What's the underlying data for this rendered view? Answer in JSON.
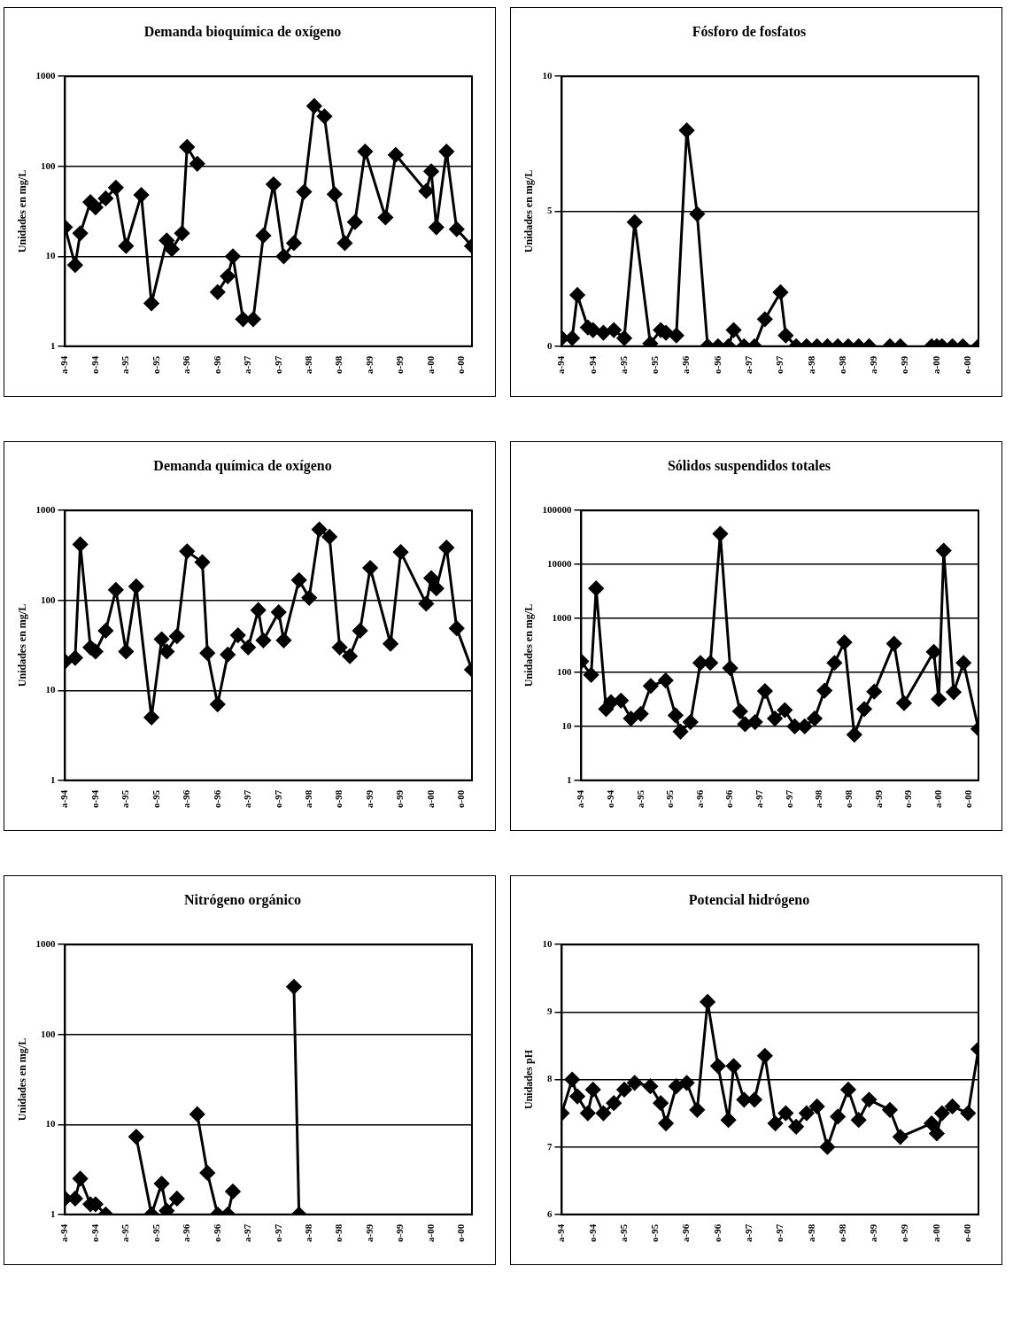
{
  "chart_data": [
    {
      "type": "line",
      "title": "Demanda bioquímica de oxígeno",
      "ylabel": "Unidades en mg/L",
      "log": true,
      "grid": "y",
      "marker": "diamond",
      "line_style": "solid",
      "color": "#000000",
      "x": [
        "1994-04",
        "1994-06",
        "1994-07",
        "1994-09",
        "1994-10",
        "1994-12",
        "1995-02",
        "1995-04",
        "1995-07",
        "1995-09",
        "1995-12",
        "1996-01",
        "1996-03",
        "1996-04",
        "1996-06",
        "1996-08",
        "1996-10",
        "1996-12",
        "1997-01",
        "1997-03",
        "1997-05",
        "1997-07",
        "1997-09",
        "1997-11",
        "1998-01",
        "1998-03",
        "1998-05",
        "1998-07",
        "1998-09",
        "1998-11",
        "1999-01",
        "1999-03",
        "1999-07",
        "1999-09",
        "2000-03",
        "2000-04",
        "2000-05",
        "2000-07",
        "2000-09",
        "2000-12"
      ],
      "values": [
        21,
        8,
        18,
        40,
        35,
        44,
        58,
        13,
        48,
        3,
        15,
        12,
        18,
        164,
        107,
        null,
        4,
        6,
        10,
        2,
        2,
        17,
        63,
        10,
        14,
        52,
        468,
        360,
        49,
        14,
        24,
        146,
        27,
        134,
        53,
        88,
        21,
        146,
        20,
        13
      ],
      "xlim": [
        "1994-04",
        "2000-12"
      ],
      "xticks": [
        {
          "value": "1994-04",
          "label": "a-94"
        },
        {
          "value": "1994-10",
          "label": "o-94"
        },
        {
          "value": "1995-04",
          "label": "a-95"
        },
        {
          "value": "1995-10",
          "label": "o-95"
        },
        {
          "value": "1996-04",
          "label": "a-96"
        },
        {
          "value": "1996-10",
          "label": "o-96"
        },
        {
          "value": "1997-04",
          "label": "a-97"
        },
        {
          "value": "1997-10",
          "label": "o-97"
        },
        {
          "value": "1998-04",
          "label": "a-98"
        },
        {
          "value": "1998-10",
          "label": "o-98"
        },
        {
          "value": "1999-04",
          "label": "a-99"
        },
        {
          "value": "1999-10",
          "label": "o-99"
        },
        {
          "value": "2000-04",
          "label": "a-00"
        },
        {
          "value": "2000-10",
          "label": "o-00"
        }
      ],
      "ylim": [
        1,
        1000
      ],
      "yticks": [
        1,
        10,
        100,
        1000
      ]
    },
    {
      "type": "line",
      "title": "Fósforo de fosfatos",
      "ylabel": "Unidades en mg/L",
      "grid": "y",
      "marker": "diamond",
      "line_style": "solid",
      "color": "#000000",
      "x": [
        "1994-04",
        "1994-06",
        "1994-07",
        "1994-09",
        "1994-10",
        "1994-12",
        "1995-02",
        "1995-04",
        "1995-06",
        "1995-09",
        "1995-11",
        "1995-12",
        "1996-02",
        "1996-04",
        "1996-06",
        "1996-08",
        "1996-10",
        "1996-12",
        "1997-01",
        "1997-03",
        "1997-05",
        "1997-07",
        "1997-10",
        "1997-11",
        "1998-01",
        "1998-03",
        "1998-05",
        "1998-07",
        "1998-09",
        "1998-11",
        "1999-01",
        "1999-03",
        "1999-05",
        "1999-07",
        "1999-09",
        "1999-12",
        "2000-03",
        "2000-04",
        "2000-05",
        "2000-07",
        "2000-09",
        "2000-12"
      ],
      "values": [
        0.3,
        0.3,
        1.9,
        0.7,
        0.6,
        0.5,
        0.6,
        0.3,
        4.6,
        0.1,
        0.6,
        0.5,
        0.4,
        8,
        4.9,
        0,
        0,
        0,
        0.6,
        0,
        0,
        1,
        2,
        0.4,
        0,
        0,
        0,
        0,
        0,
        0,
        0,
        0,
        null,
        0,
        0,
        null,
        0,
        0,
        0,
        0,
        0,
        0
      ],
      "xlim": [
        "1994-04",
        "2000-12"
      ],
      "xticks": [
        {
          "value": "1994-04",
          "label": "a-94"
        },
        {
          "value": "1994-10",
          "label": "o-94"
        },
        {
          "value": "1995-04",
          "label": "a-95"
        },
        {
          "value": "1995-10",
          "label": "o-95"
        },
        {
          "value": "1996-04",
          "label": "a-96"
        },
        {
          "value": "1996-10",
          "label": "o-96"
        },
        {
          "value": "1997-04",
          "label": "a-97"
        },
        {
          "value": "1997-10",
          "label": "o-97"
        },
        {
          "value": "1998-04",
          "label": "a-98"
        },
        {
          "value": "1998-10",
          "label": "o-98"
        },
        {
          "value": "1999-04",
          "label": "a-99"
        },
        {
          "value": "1999-10",
          "label": "o-99"
        },
        {
          "value": "2000-04",
          "label": "a-00"
        },
        {
          "value": "2000-10",
          "label": "o-00"
        }
      ],
      "ylim": [
        0,
        10
      ],
      "yticks": [
        0,
        5,
        10
      ]
    },
    {
      "type": "line",
      "title": "Demanda química de oxígeno",
      "ylabel": "Unidades en mg/L",
      "log": true,
      "grid": "y",
      "marker": "diamond",
      "line_style": "solid",
      "color": "#000000",
      "x": [
        "1994-04",
        "1994-06",
        "1994-07",
        "1994-09",
        "1994-10",
        "1994-12",
        "1995-02",
        "1995-04",
        "1995-06",
        "1995-09",
        "1995-11",
        "1995-12",
        "1996-02",
        "1996-04",
        "1996-07",
        "1996-08",
        "1996-10",
        "1996-12",
        "1997-02",
        "1997-04",
        "1997-06",
        "1997-07",
        "1997-10",
        "1997-11",
        "1998-02",
        "1998-04",
        "1998-06",
        "1998-08",
        "1998-10",
        "1998-12",
        "1999-02",
        "1999-04",
        "1999-08",
        "1999-10",
        "2000-03",
        "2000-04",
        "2000-05",
        "2000-07",
        "2000-09",
        "2000-12"
      ],
      "values": [
        21,
        23,
        420,
        30,
        27,
        46,
        131,
        27,
        143,
        5,
        37,
        27,
        40,
        351,
        266,
        26,
        7,
        25,
        41,
        30,
        78,
        36,
        74,
        36,
        168,
        107,
        615,
        509,
        30,
        24,
        46,
        230,
        33,
        345,
        92,
        177,
        136,
        386,
        49,
        17
      ],
      "xlim": [
        "1994-04",
        "2000-12"
      ],
      "xticks": [
        {
          "value": "1994-04",
          "label": "a-94"
        },
        {
          "value": "1994-10",
          "label": "o-94"
        },
        {
          "value": "1995-04",
          "label": "a-95"
        },
        {
          "value": "1995-10",
          "label": "o-95"
        },
        {
          "value": "1996-04",
          "label": "a-96"
        },
        {
          "value": "1996-10",
          "label": "o-96"
        },
        {
          "value": "1997-04",
          "label": "a-97"
        },
        {
          "value": "1997-10",
          "label": "o-97"
        },
        {
          "value": "1998-04",
          "label": "a-98"
        },
        {
          "value": "1998-10",
          "label": "o-98"
        },
        {
          "value": "1999-04",
          "label": "a-99"
        },
        {
          "value": "1999-10",
          "label": "o-99"
        },
        {
          "value": "2000-04",
          "label": "a-00"
        },
        {
          "value": "2000-10",
          "label": "o-00"
        }
      ],
      "ylim": [
        1,
        1000
      ],
      "yticks": [
        1,
        10,
        100,
        1000
      ]
    },
    {
      "type": "line",
      "title": "Sólidos suspendidos totales",
      "ylabel": "Unidades en mg/L",
      "log": true,
      "grid": "y",
      "marker": "diamond",
      "line_style": "solid",
      "color": "#000000",
      "x": [
        "1994-04",
        "1994-06",
        "1994-07",
        "1994-09",
        "1994-10",
        "1994-12",
        "1995-02",
        "1995-04",
        "1995-06",
        "1995-09",
        "1995-11",
        "1995-12",
        "1996-02",
        "1996-04",
        "1996-06",
        "1996-08",
        "1996-10",
        "1996-12",
        "1997-01",
        "1997-03",
        "1997-05",
        "1997-07",
        "1997-09",
        "1997-11",
        "1998-01",
        "1998-03",
        "1998-05",
        "1998-07",
        "1998-09",
        "1998-11",
        "1999-01",
        "1999-03",
        "1999-07",
        "1999-09",
        "2000-03",
        "2000-04",
        "2000-05",
        "2000-07",
        "2000-09",
        "2000-12"
      ],
      "values": [
        160,
        90,
        3600,
        21,
        28,
        30,
        14,
        17,
        56,
        71,
        16,
        8,
        12,
        150,
        150,
        37000,
        120,
        19,
        11,
        12,
        45,
        14,
        20,
        10,
        10,
        14,
        46,
        150,
        360,
        7,
        21,
        44,
        340,
        27,
        240,
        32,
        18000,
        43,
        150,
        9
      ],
      "xlim": [
        "1994-04",
        "2000-12"
      ],
      "xticks": [
        {
          "value": "1994-04",
          "label": "a-94"
        },
        {
          "value": "1994-10",
          "label": "o-94"
        },
        {
          "value": "1995-04",
          "label": "a-95"
        },
        {
          "value": "1995-10",
          "label": "o-95"
        },
        {
          "value": "1996-04",
          "label": "a-96"
        },
        {
          "value": "1996-10",
          "label": "o-96"
        },
        {
          "value": "1997-04",
          "label": "a-97"
        },
        {
          "value": "1997-10",
          "label": "o-97"
        },
        {
          "value": "1998-04",
          "label": "a-98"
        },
        {
          "value": "1998-10",
          "label": "o-98"
        },
        {
          "value": "1999-04",
          "label": "a-99"
        },
        {
          "value": "1999-10",
          "label": "o-99"
        },
        {
          "value": "2000-04",
          "label": "a-00"
        },
        {
          "value": "2000-10",
          "label": "o-00"
        }
      ],
      "ylim": [
        1,
        100000
      ],
      "yticks": [
        1,
        10,
        100,
        1000,
        10000,
        100000
      ]
    },
    {
      "type": "line",
      "title": "Nitrógeno orgánico",
      "ylabel": "Unidades en mg/L",
      "log": true,
      "grid": "y",
      "marker": "diamond",
      "line_style": "solid",
      "color": "#000000",
      "x": [
        "1994-04",
        "1994-06",
        "1994-07",
        "1994-09",
        "1994-10",
        "1994-12",
        "1995-03",
        "1995-06",
        "1995-09",
        "1995-11",
        "1995-12",
        "1996-02",
        "1996-04",
        "1996-06",
        "1996-08",
        "1996-10",
        "1996-11",
        "1996-12",
        "1997-01",
        "1997-07",
        "1998-01",
        "1998-02"
      ],
      "values": [
        1.5,
        1.5,
        2.5,
        1.3,
        1.3,
        1,
        null,
        7.3,
        1,
        2.2,
        1.1,
        1.5,
        null,
        13,
        2.9,
        1,
        null,
        1,
        1.8,
        null,
        340,
        1
      ],
      "xlim": [
        "1994-04",
        "2000-12"
      ],
      "xticks": [
        {
          "value": "1994-04",
          "label": "a-94"
        },
        {
          "value": "1994-10",
          "label": "o-94"
        },
        {
          "value": "1995-04",
          "label": "a-95"
        },
        {
          "value": "1995-10",
          "label": "o-95"
        },
        {
          "value": "1996-04",
          "label": "a-96"
        },
        {
          "value": "1996-10",
          "label": "o-96"
        },
        {
          "value": "1997-04",
          "label": "a-97"
        },
        {
          "value": "1997-10",
          "label": "o-97"
        },
        {
          "value": "1998-04",
          "label": "a-98"
        },
        {
          "value": "1998-10",
          "label": "o-98"
        },
        {
          "value": "1999-04",
          "label": "a-99"
        },
        {
          "value": "1999-10",
          "label": "o-99"
        },
        {
          "value": "2000-04",
          "label": "a-00"
        },
        {
          "value": "2000-10",
          "label": "o-00"
        }
      ],
      "ylim": [
        1,
        1000
      ],
      "yticks": [
        1,
        10,
        100,
        1000
      ]
    },
    {
      "type": "line",
      "title": "Potencial hidrógeno",
      "ylabel": "Unidades pH",
      "grid": "y",
      "marker": "diamond",
      "line_style": "solid",
      "color": "#000000",
      "x": [
        "1994-04",
        "1994-06",
        "1994-07",
        "1994-09",
        "1994-10",
        "1994-12",
        "1995-02",
        "1995-04",
        "1995-06",
        "1995-09",
        "1995-11",
        "1995-12",
        "1996-02",
        "1996-04",
        "1996-06",
        "1996-08",
        "1996-10",
        "1996-12",
        "1997-01",
        "1997-03",
        "1997-05",
        "1997-07",
        "1997-09",
        "1997-11",
        "1998-01",
        "1998-03",
        "1998-05",
        "1998-07",
        "1998-09",
        "1998-11",
        "1999-01",
        "1999-03",
        "1999-07",
        "1999-09",
        "2000-03",
        "2000-04",
        "2000-05",
        "2000-07",
        "2000-10",
        "2000-12"
      ],
      "values": [
        7.5,
        8.0,
        7.75,
        7.5,
        7.85,
        7.5,
        7.65,
        7.85,
        7.95,
        7.9,
        7.65,
        7.35,
        7.9,
        7.95,
        7.55,
        9.15,
        8.2,
        7.4,
        8.2,
        7.7,
        7.7,
        8.35,
        7.35,
        7.5,
        7.3,
        7.5,
        7.6,
        7.0,
        7.45,
        7.85,
        7.4,
        7.7,
        7.55,
        7.15,
        7.35,
        7.2,
        7.5,
        7.6,
        7.5,
        8.45
      ],
      "xlim": [
        "1994-04",
        "2000-12"
      ],
      "xticks": [
        {
          "value": "1994-04",
          "label": "a-94"
        },
        {
          "value": "1994-10",
          "label": "o-94"
        },
        {
          "value": "1995-04",
          "label": "a-95"
        },
        {
          "value": "1995-10",
          "label": "o-95"
        },
        {
          "value": "1996-04",
          "label": "a-96"
        },
        {
          "value": "1996-10",
          "label": "o-96"
        },
        {
          "value": "1997-04",
          "label": "a-97"
        },
        {
          "value": "1997-10",
          "label": "o-97"
        },
        {
          "value": "1998-04",
          "label": "a-98"
        },
        {
          "value": "1998-10",
          "label": "o-98"
        },
        {
          "value": "1999-04",
          "label": "a-99"
        },
        {
          "value": "1999-10",
          "label": "o-99"
        },
        {
          "value": "2000-04",
          "label": "a-00"
        },
        {
          "value": "2000-10",
          "label": "o-00"
        }
      ],
      "ylim": [
        6,
        10
      ],
      "yticks": [
        6,
        7,
        8,
        9,
        10
      ]
    }
  ]
}
